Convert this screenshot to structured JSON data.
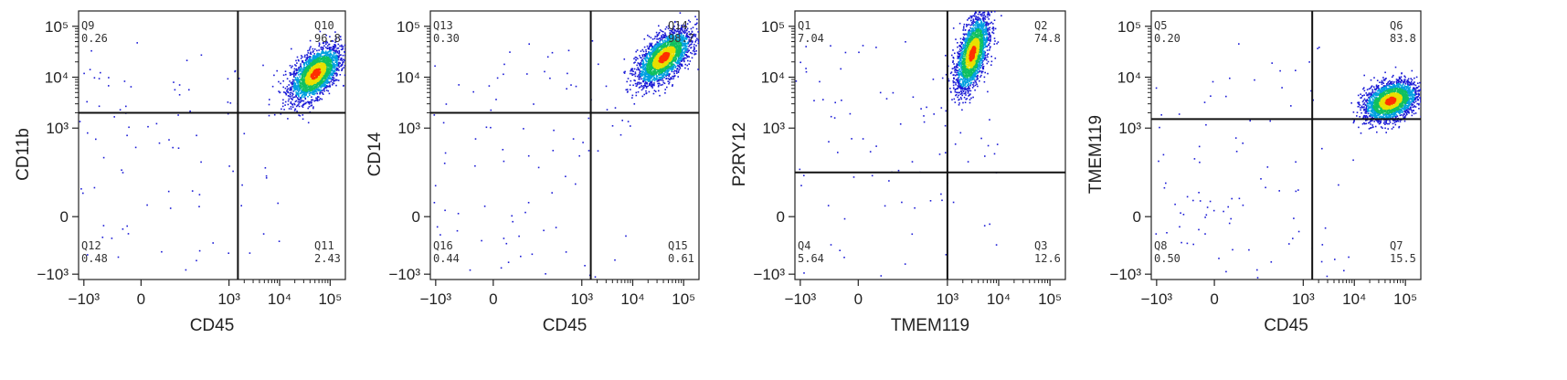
{
  "chart_data": [
    {
      "type": "scatter",
      "title": "",
      "xlabel": "CD45",
      "ylabel": "CD11b",
      "xticks": [
        "−10³",
        "0",
        "10³",
        "10⁴",
        "10⁵"
      ],
      "yticks": [
        "10⁵",
        "10⁴",
        "10³",
        "0",
        "−10³"
      ],
      "gate_x": 1500,
      "gate_y": 2000,
      "quadrants": [
        {
          "name": "Q9",
          "value": "0.26",
          "pos": "top-left"
        },
        {
          "name": "Q10",
          "value": "96.8",
          "pos": "top-right"
        },
        {
          "name": "Q12",
          "value": "0.48",
          "pos": "bottom-left"
        },
        {
          "name": "Q11",
          "value": "2.43",
          "pos": "bottom-right"
        }
      ],
      "population_center": {
        "x": 50000,
        "y": 12000
      },
      "colorscale": [
        "#1b1bd6",
        "#00a0e0",
        "#10c060",
        "#e8e000",
        "#ff3000"
      ]
    },
    {
      "type": "scatter",
      "title": "",
      "xlabel": "CD45",
      "ylabel": "CD14",
      "xticks": [
        "−10³",
        "0",
        "10³",
        "10⁴",
        "10⁵"
      ],
      "yticks": [
        "10⁵",
        "10⁴",
        "10³",
        "0",
        "−10³"
      ],
      "gate_x": 1500,
      "gate_y": 2000,
      "quadrants": [
        {
          "name": "Q13",
          "value": "0.30",
          "pos": "top-left"
        },
        {
          "name": "Q14",
          "value": "98.7",
          "pos": "top-right"
        },
        {
          "name": "Q16",
          "value": "0.44",
          "pos": "bottom-left"
        },
        {
          "name": "Q15",
          "value": "0.61",
          "pos": "bottom-right"
        }
      ],
      "population_center": {
        "x": 40000,
        "y": 25000
      },
      "colorscale": [
        "#1b1bd6",
        "#00a0e0",
        "#10c060",
        "#e8e000",
        "#ff3000"
      ]
    },
    {
      "type": "scatter",
      "title": "",
      "xlabel": "TMEM119",
      "ylabel": "P2RY12",
      "xticks": [
        "−10³",
        "0",
        "10³",
        "10⁴",
        "10⁵"
      ],
      "yticks": [
        "10⁵",
        "10⁴",
        "10³",
        "0",
        "−10³"
      ],
      "gate_x": 1000,
      "gate_y": 500,
      "quadrants": [
        {
          "name": "Q1",
          "value": "7.04",
          "pos": "top-left"
        },
        {
          "name": "Q2",
          "value": "74.8",
          "pos": "top-right"
        },
        {
          "name": "Q4",
          "value": "5.64",
          "pos": "bottom-left"
        },
        {
          "name": "Q3",
          "value": "12.6",
          "pos": "bottom-right"
        }
      ],
      "population_center": {
        "x": 3000,
        "y": 30000
      },
      "colorscale": [
        "#1b1bd6",
        "#00a0e0",
        "#10c060",
        "#e8e000",
        "#ff3000"
      ]
    },
    {
      "type": "scatter",
      "title": "",
      "xlabel": "CD45",
      "ylabel": "TMEM119",
      "xticks": [
        "−10³",
        "0",
        "10³",
        "10⁴",
        "10⁵"
      ],
      "yticks": [
        "10⁵",
        "10⁴",
        "10³",
        "0",
        "−10³"
      ],
      "gate_x": 1500,
      "gate_y": 1500,
      "quadrants": [
        {
          "name": "Q5",
          "value": "0.20",
          "pos": "top-left"
        },
        {
          "name": "Q6",
          "value": "83.8",
          "pos": "top-right"
        },
        {
          "name": "Q8",
          "value": "0.50",
          "pos": "bottom-left"
        },
        {
          "name": "Q7",
          "value": "15.5",
          "pos": "bottom-right"
        }
      ],
      "population_center": {
        "x": 50000,
        "y": 3500
      },
      "colorscale": [
        "#1b1bd6",
        "#00a0e0",
        "#10c060",
        "#e8e000",
        "#ff3000"
      ]
    }
  ]
}
